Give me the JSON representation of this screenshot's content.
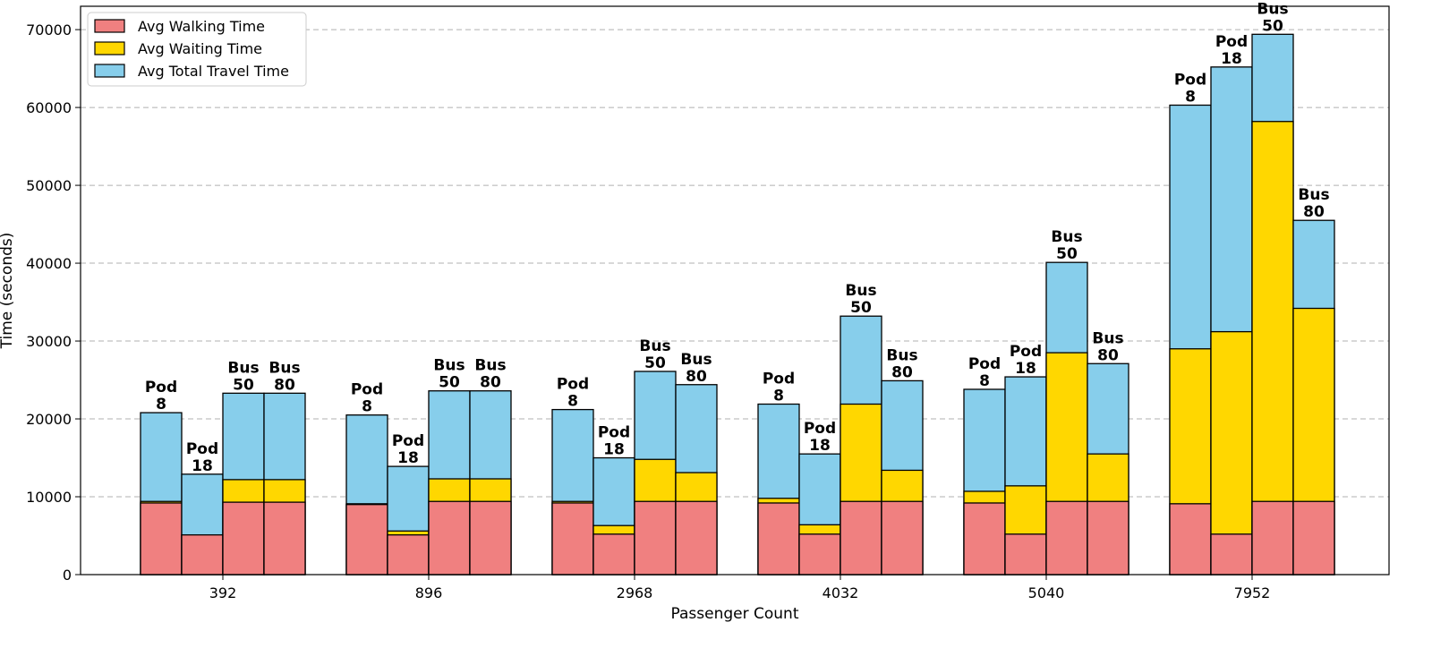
{
  "chart_data": {
    "type": "bar",
    "stacking": "overlaid",
    "title": "",
    "xlabel": "Passenger Count",
    "ylabel": "Time (seconds)",
    "ylim": [
      0,
      73000
    ],
    "yticks": [
      0,
      10000,
      20000,
      30000,
      40000,
      50000,
      60000,
      70000
    ],
    "grid": "y-dashed",
    "legend_position": "top-left",
    "colors": {
      "walking": "#f08080",
      "waiting": "#ffd700",
      "total": "#87ceeb",
      "edge": "#000000",
      "grid": "#b0b0b0"
    },
    "legend": [
      {
        "key": "walking",
        "label": "Avg Walking Time"
      },
      {
        "key": "waiting",
        "label": "Avg Waiting Time"
      },
      {
        "key": "total",
        "label": "Avg Total Travel Time"
      }
    ],
    "groups": [
      {
        "category": "392",
        "bars": [
          {
            "label": [
              "Pod",
              "8"
            ],
            "walking": 9200,
            "waiting": 9400,
            "total": 20800
          },
          {
            "label": [
              "Pod",
              "18"
            ],
            "walking": 5100,
            "waiting": 5100,
            "total": 12900
          },
          {
            "label": [
              "Bus",
              "50"
            ],
            "walking": 9300,
            "waiting": 12200,
            "total": 23300
          },
          {
            "label": [
              "Bus",
              "80"
            ],
            "walking": 9300,
            "waiting": 12200,
            "total": 23300
          }
        ]
      },
      {
        "category": "896",
        "bars": [
          {
            "label": [
              "Pod",
              "8"
            ],
            "walking": 9000,
            "waiting": 9100,
            "total": 20500
          },
          {
            "label": [
              "Pod",
              "18"
            ],
            "walking": 5100,
            "waiting": 5600,
            "total": 13900
          },
          {
            "label": [
              "Bus",
              "50"
            ],
            "walking": 9400,
            "waiting": 12300,
            "total": 23600
          },
          {
            "label": [
              "Bus",
              "80"
            ],
            "walking": 9400,
            "waiting": 12300,
            "total": 23600
          }
        ]
      },
      {
        "category": "2968",
        "bars": [
          {
            "label": [
              "Pod",
              "8"
            ],
            "walking": 9200,
            "waiting": 9400,
            "total": 21200
          },
          {
            "label": [
              "Pod",
              "18"
            ],
            "walking": 5200,
            "waiting": 6300,
            "total": 15000
          },
          {
            "label": [
              "Bus",
              "50"
            ],
            "walking": 9400,
            "waiting": 14800,
            "total": 26100
          },
          {
            "label": [
              "Bus",
              "80"
            ],
            "walking": 9400,
            "waiting": 13100,
            "total": 24400
          }
        ]
      },
      {
        "category": "4032",
        "bars": [
          {
            "label": [
              "Pod",
              "8"
            ],
            "walking": 9200,
            "waiting": 9800,
            "total": 21900
          },
          {
            "label": [
              "Pod",
              "18"
            ],
            "walking": 5200,
            "waiting": 6400,
            "total": 15500
          },
          {
            "label": [
              "Bus",
              "50"
            ],
            "walking": 9400,
            "waiting": 21900,
            "total": 33200
          },
          {
            "label": [
              "Bus",
              "80"
            ],
            "walking": 9400,
            "waiting": 13400,
            "total": 24900
          }
        ]
      },
      {
        "category": "5040",
        "bars": [
          {
            "label": [
              "Pod",
              "8"
            ],
            "walking": 9200,
            "waiting": 10700,
            "total": 23800
          },
          {
            "label": [
              "Pod",
              "18"
            ],
            "walking": 5200,
            "waiting": 11400,
            "total": 25400
          },
          {
            "label": [
              "Bus",
              "50"
            ],
            "walking": 9400,
            "waiting": 28500,
            "total": 40100
          },
          {
            "label": [
              "Bus",
              "80"
            ],
            "walking": 9400,
            "waiting": 15500,
            "total": 27100
          }
        ]
      },
      {
        "category": "7952",
        "bars": [
          {
            "label": [
              "Pod",
              "8"
            ],
            "walking": 9100,
            "waiting": 29000,
            "total": 60300
          },
          {
            "label": [
              "Pod",
              "18"
            ],
            "walking": 5200,
            "waiting": 31200,
            "total": 65200
          },
          {
            "label": [
              "Bus",
              "50"
            ],
            "walking": 9400,
            "waiting": 58200,
            "total": 69400
          },
          {
            "label": [
              "Bus",
              "80"
            ],
            "walking": 9400,
            "waiting": 34200,
            "total": 45500
          }
        ]
      }
    ]
  }
}
